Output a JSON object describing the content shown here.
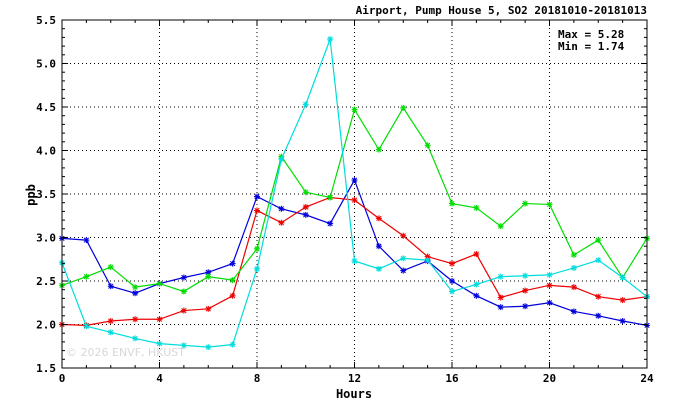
{
  "chart_data": {
    "type": "line",
    "title": "Airport, Pump House 5, SO2 20181010-20181013",
    "xlabel": "Hours",
    "ylabel": "ppb",
    "xlim": [
      0,
      24
    ],
    "ylim": [
      1.5,
      5.5
    ],
    "xticks": [
      0,
      4,
      8,
      12,
      16,
      20,
      24
    ],
    "yticks": [
      1.5,
      2.0,
      2.5,
      3.0,
      3.5,
      4.0,
      4.5,
      5.0,
      5.5
    ],
    "xtick_labels": [
      "0",
      "4",
      "8",
      "12",
      "16",
      "20",
      "24"
    ],
    "ytick_labels": [
      "1.5",
      "2.0",
      "2.5",
      "3.0",
      "3.5",
      "4.0",
      "4.5",
      "5.0",
      "5.5"
    ],
    "grid": true,
    "max_label": "Max = 5.28",
    "min_label": "Min = 1.74",
    "watermark": "© 2026  ENVF, HKUST",
    "x": [
      0,
      1,
      2,
      3,
      4,
      5,
      6,
      7,
      8,
      9,
      10,
      11,
      12,
      13,
      14,
      15,
      16,
      17,
      18,
      19,
      20,
      21,
      22,
      23,
      24
    ],
    "series": [
      {
        "color": "#0000dd",
        "values": [
          2.99,
          2.97,
          2.44,
          2.36,
          2.47,
          2.54,
          2.6,
          2.7,
          3.47,
          3.33,
          3.26,
          3.16,
          3.66,
          2.9,
          2.62,
          2.73,
          2.5,
          2.33,
          2.2,
          2.21,
          2.25,
          2.15,
          2.1,
          2.04,
          1.99
        ]
      },
      {
        "color": "#ee0000",
        "values": [
          2.0,
          1.99,
          2.04,
          2.06,
          2.06,
          2.16,
          2.18,
          2.33,
          3.31,
          3.17,
          3.35,
          3.46,
          3.43,
          3.22,
          3.02,
          2.78,
          2.7,
          2.81,
          2.31,
          2.39,
          2.45,
          2.43,
          2.32,
          2.28,
          2.32
        ]
      },
      {
        "color": "#00dd00",
        "values": [
          2.45,
          2.55,
          2.66,
          2.43,
          2.47,
          2.38,
          2.55,
          2.51,
          2.87,
          3.93,
          3.52,
          3.46,
          4.47,
          4.01,
          4.49,
          4.06,
          3.39,
          3.34,
          3.13,
          3.39,
          3.38,
          2.8,
          2.97,
          2.54,
          2.99
        ]
      },
      {
        "color": "#00dddd",
        "values": [
          2.71,
          1.98,
          1.91,
          1.84,
          1.78,
          1.76,
          1.74,
          1.77,
          2.64,
          3.9,
          4.53,
          5.28,
          2.73,
          2.64,
          2.76,
          2.74,
          2.38,
          2.46,
          2.55,
          2.56,
          2.57,
          2.65,
          2.74,
          2.54,
          2.32
        ]
      }
    ]
  }
}
